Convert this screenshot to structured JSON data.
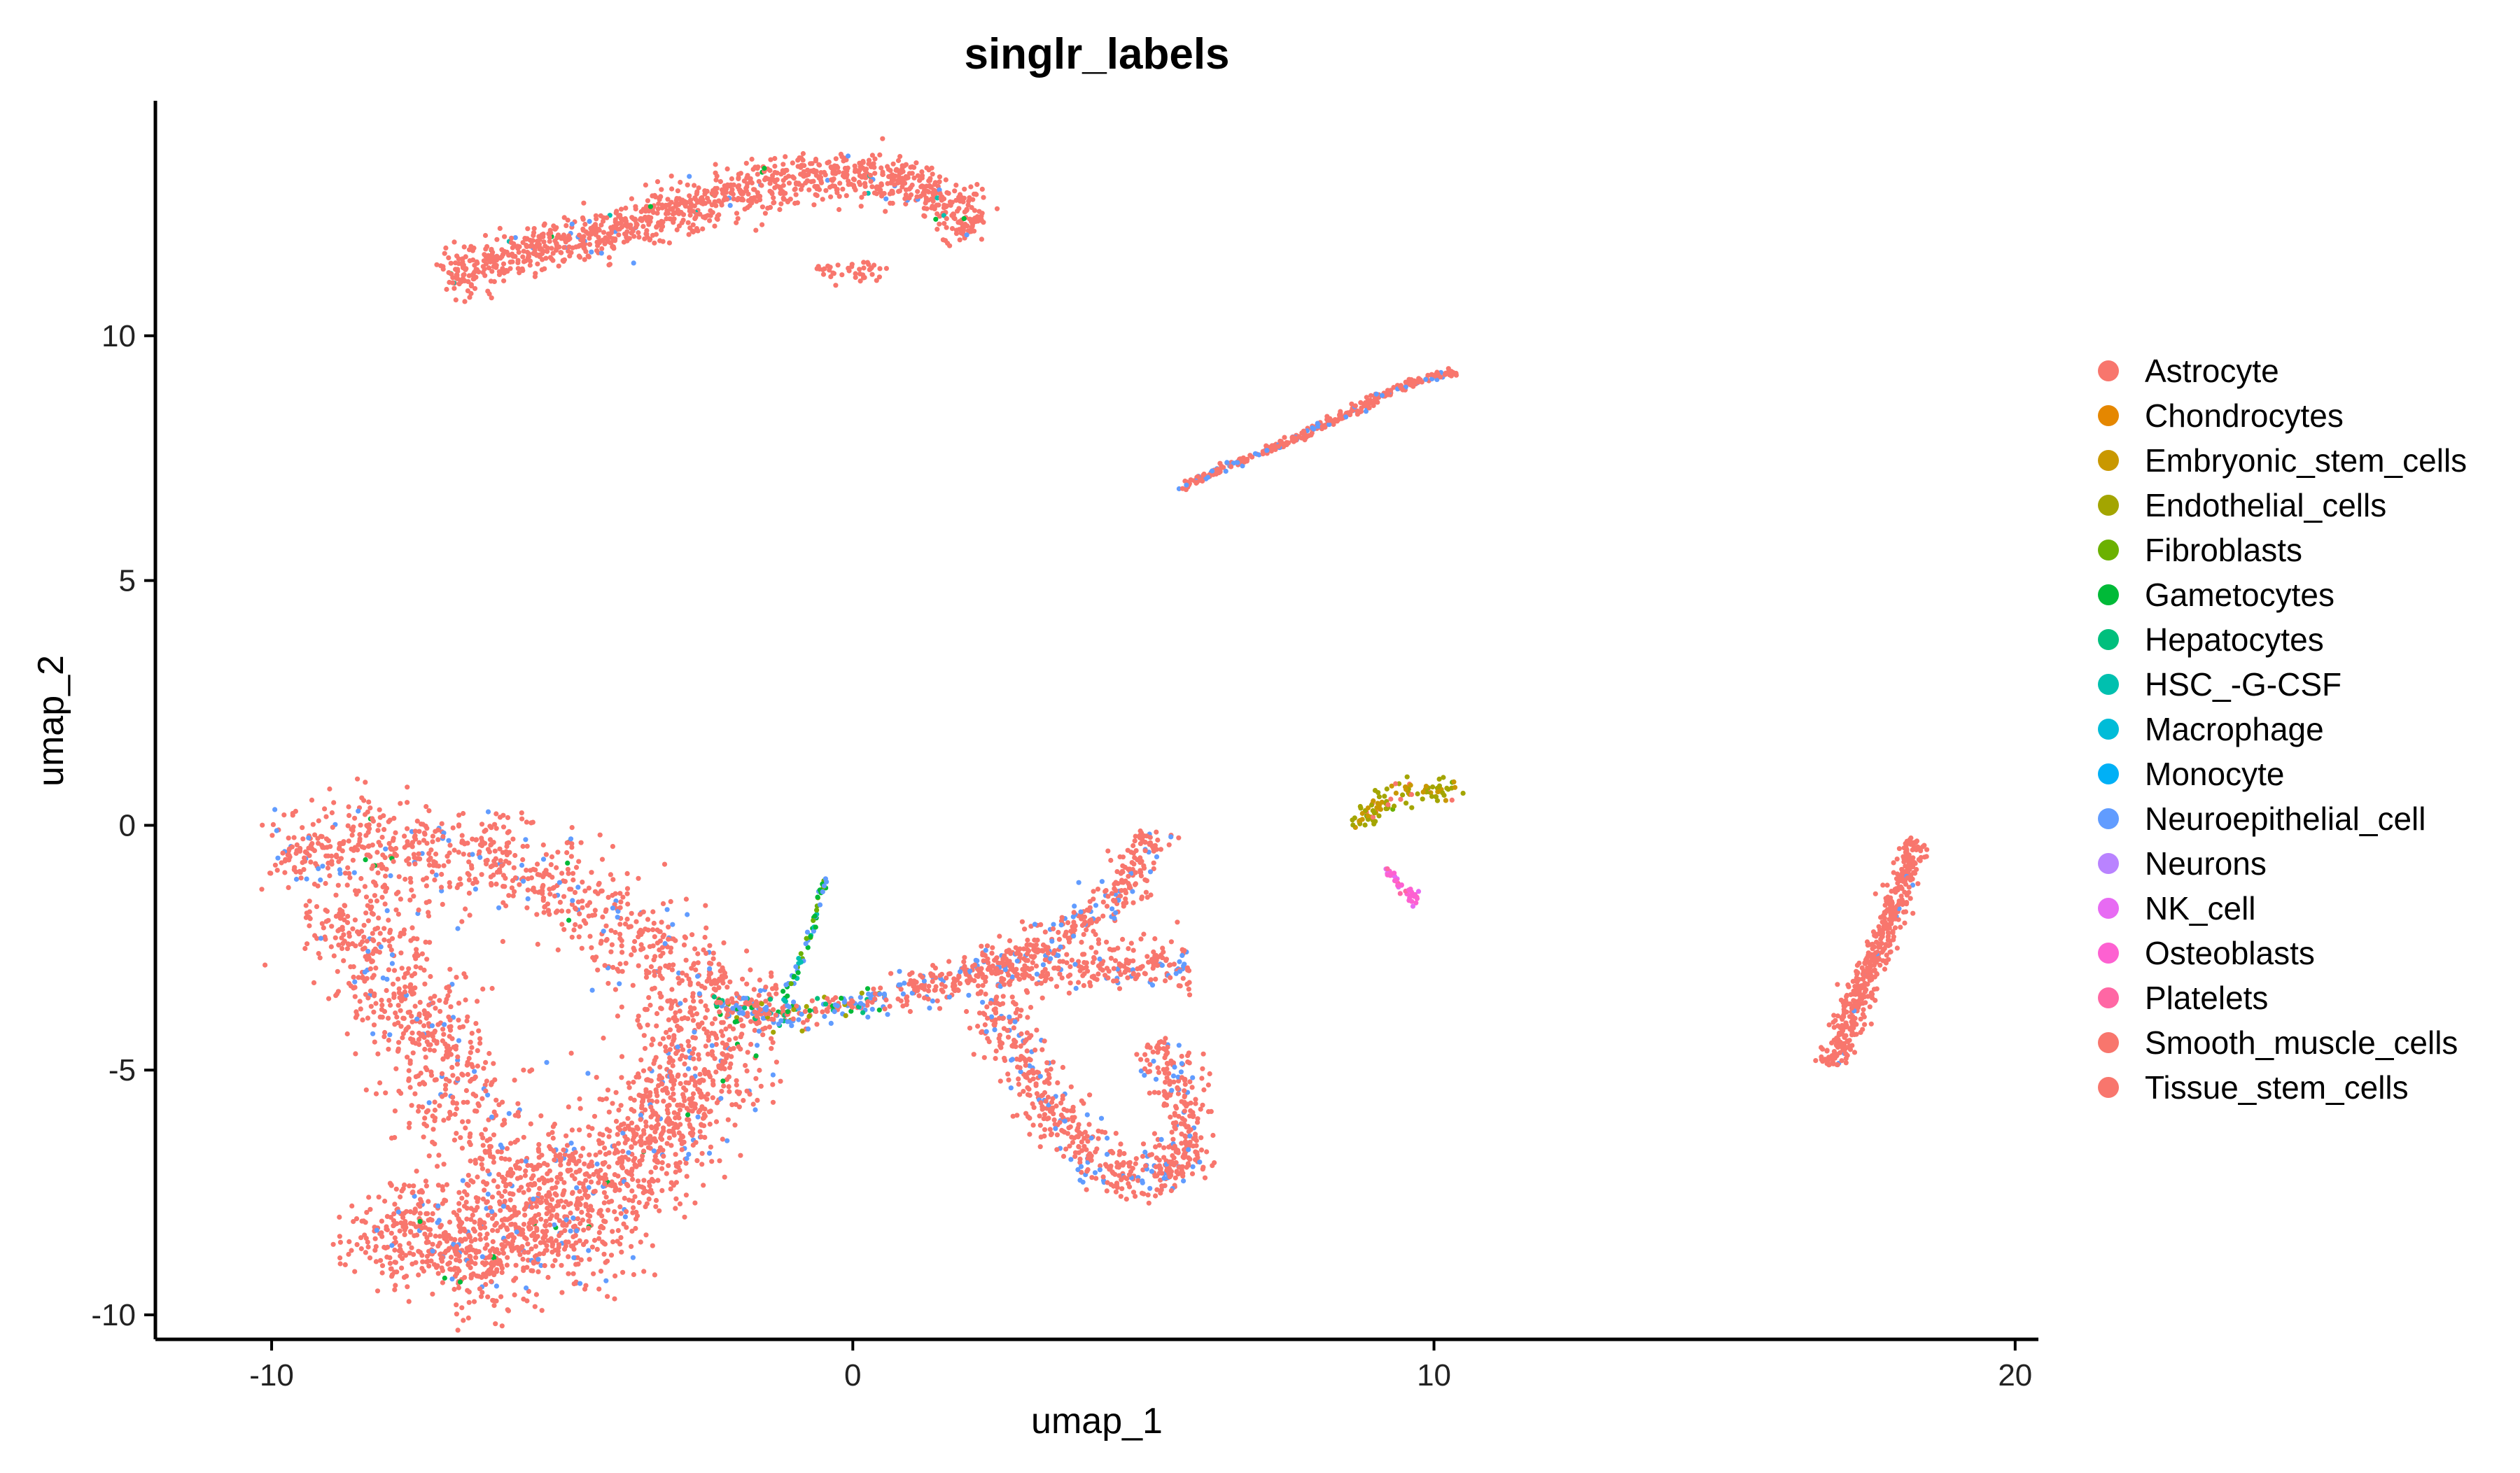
{
  "chart_data": {
    "type": "scatter",
    "title": "singlr_labels",
    "xlabel": "umap_1",
    "ylabel": "umap_2",
    "xlim": [
      -12,
      20.4
    ],
    "ylim": [
      -10.5,
      14.8
    ],
    "x_ticks": [
      -10,
      0,
      10,
      20
    ],
    "y_ticks": [
      -10,
      -5,
      0,
      5,
      10
    ],
    "x_tick_labels": [
      "-10",
      "0",
      "10",
      "20"
    ],
    "y_tick_labels": [
      "-10",
      "-5",
      "0",
      "5",
      "10"
    ],
    "grid": false,
    "legend_position": "right",
    "series": [
      {
        "name": "Astrocyte",
        "color": "#F8766D"
      },
      {
        "name": "Chondrocytes",
        "color": "#E58700"
      },
      {
        "name": "Embryonic_stem_cells",
        "color": "#C99800"
      },
      {
        "name": "Endothelial_cells",
        "color": "#A3A500"
      },
      {
        "name": "Fibroblasts",
        "color": "#6BB100"
      },
      {
        "name": "Gametocytes",
        "color": "#00BA38"
      },
      {
        "name": "Hepatocytes",
        "color": "#00BF7D"
      },
      {
        "name": "HSC_-G-CSF",
        "color": "#00C0AF"
      },
      {
        "name": "Macrophage",
        "color": "#00BCD8"
      },
      {
        "name": "Monocyte",
        "color": "#00B0F6"
      },
      {
        "name": "Neuroepithelial_cell",
        "color": "#619CFF"
      },
      {
        "name": "Neurons",
        "color": "#B983FF"
      },
      {
        "name": "NK_cell",
        "color": "#E76BF3"
      },
      {
        "name": "Osteoblasts",
        "color": "#FD61D1"
      },
      {
        "name": "Platelets",
        "color": "#FF67A4"
      },
      {
        "name": "Smooth_muscle_cells",
        "color": "#F8766D"
      },
      {
        "name": "Tissue_stem_cells",
        "color": "#F8766D"
      }
    ],
    "clusters": [
      {
        "id": "top-band",
        "path": [
          [
            -7,
            11.2
          ],
          [
            -5,
            11.9
          ],
          [
            -3,
            12.6
          ],
          [
            -1,
            13.2
          ],
          [
            0.5,
            13.3
          ],
          [
            1.5,
            12.9
          ],
          [
            2.1,
            12.2
          ]
        ],
        "width": 0.45,
        "n": 1200,
        "mix": {
          "Astrocyte": 0.95,
          "Neuroepithelial_cell": 0.03,
          "Gametocytes": 0.01,
          "HSC_-G-CSF": 0.01
        }
      },
      {
        "id": "top-drip",
        "path": [
          [
            -0.6,
            11.4
          ],
          [
            0,
            11.2
          ],
          [
            0.5,
            11.5
          ]
        ],
        "width": 0.2,
        "n": 40,
        "mix": {
          "Astrocyte": 1.0
        }
      },
      {
        "id": "diagonal",
        "path": [
          [
            5.6,
            6.9
          ],
          [
            7.8,
            8.0
          ],
          [
            9.5,
            9.0
          ],
          [
            10.4,
            9.3
          ]
        ],
        "width": 0.08,
        "n": 320,
        "mix": {
          "Astrocyte": 0.85,
          "Neuroepithelial_cell": 0.15
        }
      },
      {
        "id": "left-upper-arm",
        "path": [
          [
            -10,
            -0.8
          ],
          [
            -8,
            -0.3
          ],
          [
            -5.5,
            -0.8
          ],
          [
            -3.8,
            -2.2
          ],
          [
            -2.6,
            -3.6
          ],
          [
            -1.2,
            -3.9
          ]
        ],
        "width": 0.9,
        "n": 900,
        "mix": {
          "Astrocyte": 0.92,
          "Neuroepithelial_cell": 0.07,
          "Gametocytes": 0.01
        }
      },
      {
        "id": "left-lower-lobe",
        "path": [
          [
            -8.2,
            -7.8
          ],
          [
            -7,
            -8.8
          ],
          [
            -5.5,
            -8.7
          ],
          [
            -4.2,
            -7.5
          ],
          [
            -3.2,
            -5.8
          ],
          [
            -2.2,
            -4.2
          ]
        ],
        "width": 1.1,
        "n": 1500,
        "mix": {
          "Astrocyte": 0.92,
          "Neuroepithelial_cell": 0.07,
          "Gametocytes": 0.01
        }
      },
      {
        "id": "left-body-fill",
        "path": [
          [
            -8.8,
            -1.5
          ],
          [
            -7.5,
            -4.0
          ],
          [
            -6.5,
            -6.5
          ],
          [
            -5,
            -7.5
          ]
        ],
        "width": 1.0,
        "n": 700,
        "mix": {
          "Astrocyte": 0.93,
          "Neuroepithelial_cell": 0.07
        }
      },
      {
        "id": "center-knot",
        "path": [
          [
            -2.4,
            -3.7
          ],
          [
            -1.0,
            -3.9
          ],
          [
            0.6,
            -3.5
          ]
        ],
        "width": 0.25,
        "n": 220,
        "mix": {
          "Astrocyte": 0.45,
          "Neuroepithelial_cell": 0.3,
          "Gametocytes": 0.1,
          "Hepatocytes": 0.08,
          "Endothelial_cells": 0.07
        }
      },
      {
        "id": "center-spike",
        "path": [
          [
            -1.2,
            -3.6
          ],
          [
            -0.8,
            -2.5
          ],
          [
            -0.45,
            -1.0
          ]
        ],
        "width": 0.06,
        "n": 60,
        "mix": {
          "Neuroepithelial_cell": 0.35,
          "Gametocytes": 0.25,
          "HSC_-G-CSF": 0.2,
          "Fibroblasts": 0.2
        }
      },
      {
        "id": "right-wing-upper",
        "path": [
          [
            0.8,
            -3.5
          ],
          [
            2.8,
            -2.7
          ],
          [
            4.5,
            -1.6
          ],
          [
            5.2,
            -0.1
          ]
        ],
        "width": 0.35,
        "n": 400,
        "mix": {
          "Astrocyte": 0.85,
          "Neuroepithelial_cell": 0.15
        }
      },
      {
        "id": "right-wing-mid",
        "path": [
          [
            2,
            -3.1
          ],
          [
            4,
            -2.9
          ],
          [
            5.8,
            -2.8
          ]
        ],
        "width": 0.4,
        "n": 300,
        "mix": {
          "Astrocyte": 0.9,
          "Neuroepithelial_cell": 0.1
        }
      },
      {
        "id": "right-wing-lower",
        "path": [
          [
            2.3,
            -3.5
          ],
          [
            3.3,
            -5.6
          ],
          [
            4.3,
            -7.1
          ],
          [
            5.6,
            -7.2
          ],
          [
            5.8,
            -6.0
          ],
          [
            5.2,
            -4.4
          ]
        ],
        "width": 0.45,
        "n": 650,
        "mix": {
          "Astrocyte": 0.87,
          "Neuroepithelial_cell": 0.13
        }
      },
      {
        "id": "small-cluster",
        "path": [
          [
            8.6,
            -0.0
          ],
          [
            9.3,
            0.6
          ],
          [
            10.4,
            0.8
          ]
        ],
        "width": 0.22,
        "n": 110,
        "mix": {
          "Endothelial_cells": 0.5,
          "Embryonic_stem_cells": 0.3,
          "Astrocyte": 0.15,
          "Fibroblasts": 0.05
        }
      },
      {
        "id": "small-tail",
        "path": [
          [
            9.2,
            -0.9
          ],
          [
            9.7,
            -1.6
          ]
        ],
        "width": 0.1,
        "n": 35,
        "mix": {
          "Osteoblasts": 0.6,
          "NK_cell": 0.25,
          "Platelets": 0.15
        }
      },
      {
        "id": "far-right-plume",
        "path": [
          [
            16.8,
            -4.9
          ],
          [
            17.3,
            -3.5
          ],
          [
            17.9,
            -1.8
          ],
          [
            18.3,
            -0.3
          ]
        ],
        "width": 0.22,
        "n": 520,
        "mix": {
          "Astrocyte": 0.98,
          "Neuroepithelial_cell": 0.02
        }
      }
    ]
  }
}
